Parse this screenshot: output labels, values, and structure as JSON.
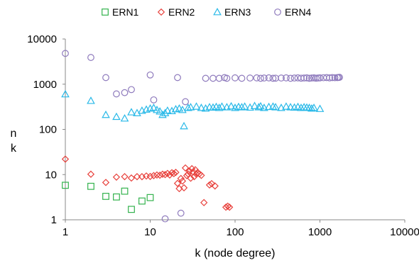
{
  "chart_data": {
    "type": "scatter",
    "title": "",
    "xlabel": "k (node degree)",
    "ylabel": "n_k",
    "ylabel_main": "n",
    "ylabel_sub": "k",
    "x_scale": "log",
    "y_scale": "log",
    "xlim": [
      1,
      10000
    ],
    "ylim": [
      1,
      10000
    ],
    "x_ticks": [
      1,
      10,
      100,
      1000,
      10000
    ],
    "x_tick_labels": [
      "1",
      "10",
      "100",
      "1000",
      "10000"
    ],
    "y_ticks": [
      1,
      10,
      100,
      1000,
      10000
    ],
    "y_tick_labels": [
      "1",
      "10",
      "100",
      "1000",
      "10000"
    ],
    "grid": false,
    "legend_position": "top",
    "series": [
      {
        "name": "ERN1",
        "marker": "square",
        "color": "#33b24d",
        "x": [
          1,
          2,
          3,
          4,
          5,
          6,
          8,
          10
        ],
        "y": [
          5.8,
          5.5,
          3.3,
          3.2,
          4.3,
          1.7,
          2.6,
          3.1
        ]
      },
      {
        "name": "ERN2",
        "marker": "diamond",
        "color": "#e8413c",
        "x": [
          1,
          2,
          3,
          4,
          5,
          6,
          7,
          8,
          9,
          10,
          11,
          12,
          13,
          14,
          15,
          16,
          17,
          18,
          19,
          20,
          21,
          22,
          23,
          24,
          25,
          26,
          27,
          28,
          29,
          30,
          31,
          32,
          33,
          34,
          35,
          36,
          38,
          40,
          43,
          50,
          53,
          58,
          78,
          82,
          86
        ],
        "y": [
          22,
          10.2,
          6.7,
          8.8,
          9.0,
          8.4,
          9.0,
          9.0,
          9.3,
          9.1,
          9.5,
          9.8,
          9.7,
          10.2,
          10.0,
          10.6,
          9.8,
          11.0,
          10.5,
          11.2,
          6.4,
          4.9,
          8.2,
          7.2,
          5.1,
          14.0,
          9.5,
          10.3,
          12.0,
          8.3,
          13.5,
          11.5,
          9.0,
          12.8,
          10.2,
          11.0,
          10.4,
          9.6,
          2.4,
          5.9,
          6.3,
          5.6,
          1.9,
          2.0,
          1.9
        ]
      },
      {
        "name": "ERN3",
        "marker": "triangle",
        "color": "#29b9e8",
        "x": [
          1,
          2,
          3,
          4,
          5,
          6,
          7,
          8,
          9,
          10,
          11,
          12,
          13,
          14,
          15,
          16,
          18,
          20,
          22,
          24,
          25,
          28,
          30,
          35,
          40,
          45,
          50,
          55,
          60,
          65,
          70,
          80,
          90,
          100,
          110,
          120,
          130,
          150,
          170,
          190,
          200,
          220,
          250,
          280,
          300,
          350,
          400,
          450,
          500,
          550,
          600,
          650,
          700,
          750,
          800,
          850,
          1000
        ],
        "y": [
          600,
          430,
          210,
          190,
          175,
          240,
          230,
          260,
          275,
          290,
          300,
          270,
          250,
          210,
          230,
          260,
          255,
          280,
          290,
          270,
          118,
          300,
          310,
          320,
          300,
          290,
          310,
          305,
          315,
          300,
          320,
          310,
          325,
          300,
          315,
          310,
          320,
          305,
          330,
          310,
          325,
          300,
          315,
          320,
          310,
          300,
          320,
          310,
          305,
          315,
          300,
          310,
          305,
          300,
          290,
          300,
          285
        ]
      },
      {
        "name": "ERN4",
        "marker": "circle",
        "color": "#8f7bbd",
        "x": [
          1,
          2,
          3,
          4,
          5,
          6,
          10,
          11,
          15,
          21,
          23,
          26,
          45,
          55,
          65,
          75,
          80,
          100,
          120,
          150,
          180,
          200,
          220,
          250,
          280,
          300,
          350,
          400,
          450,
          500,
          550,
          600,
          650,
          700,
          750,
          800,
          850,
          900,
          950,
          1000,
          1100,
          1200,
          1300,
          1400,
          1500,
          1600,
          1650,
          1700
        ],
        "y": [
          4800,
          3900,
          1400,
          610,
          650,
          760,
          1600,
          450,
          1.05,
          1400,
          1.4,
          410,
          1350,
          1350,
          1350,
          1400,
          1350,
          1380,
          1350,
          1370,
          1380,
          1350,
          1370,
          1380,
          1350,
          1360,
          1370,
          1380,
          1350,
          1370,
          1380,
          1360,
          1370,
          1380,
          1350,
          1370,
          1380,
          1360,
          1370,
          1380,
          1390,
          1400,
          1380,
          1400,
          1390,
          1400,
          1410,
          1420
        ]
      }
    ]
  }
}
